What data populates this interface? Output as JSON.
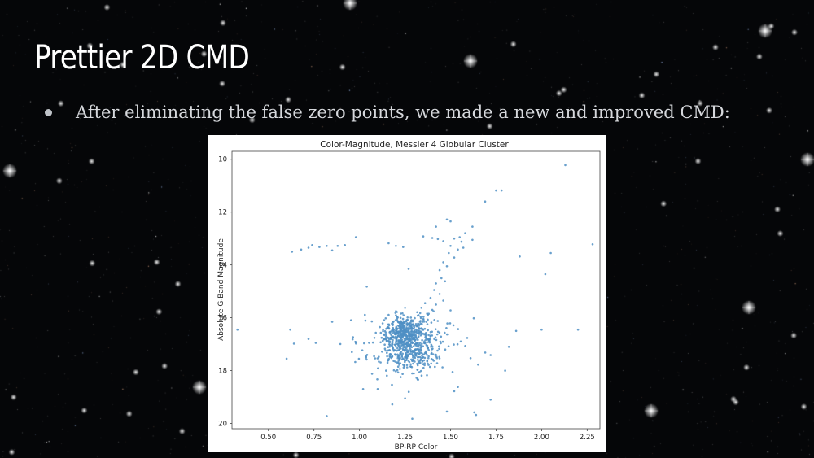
{
  "slide": {
    "title": "Prettier 2D CMD",
    "bullet": "After eliminating the false zero points, we made a new and improved CMD:"
  },
  "colors": {
    "background": "#050608",
    "title": "#ffffff",
    "bullet_text": "#d6d8dc",
    "point": "#4f8fc4"
  },
  "chart_data": {
    "type": "scatter",
    "title": "Color-Magnitude, Messier 4 Globular Cluster",
    "xlabel": "BP-RP Color",
    "ylabel": "Absolute G-Band Magnitude",
    "xlim": [
      0.3,
      2.32
    ],
    "ylim": [
      20.2,
      9.7
    ],
    "y_inverted": true,
    "x_ticks": [
      "0.50",
      "0.75",
      "1.00",
      "1.25",
      "1.50",
      "1.75",
      "2.00",
      "2.25"
    ],
    "y_ticks": [
      "10",
      "12",
      "14",
      "16",
      "18",
      "20"
    ],
    "grid": false,
    "legend": "none",
    "series": [
      {
        "points": [
          [
            2.13,
            10.22
          ],
          [
            1.75,
            11.18
          ],
          [
            1.78,
            11.18
          ],
          [
            1.69,
            11.6
          ],
          [
            1.48,
            12.28
          ],
          [
            1.5,
            12.35
          ],
          [
            1.42,
            12.55
          ],
          [
            1.62,
            12.55
          ],
          [
            1.58,
            12.8
          ],
          [
            1.55,
            12.95
          ],
          [
            1.35,
            12.92
          ],
          [
            1.4,
            12.98
          ],
          [
            1.46,
            13.1
          ],
          [
            1.52,
            13.0
          ],
          [
            1.56,
            13.12
          ],
          [
            1.5,
            13.28
          ],
          [
            1.54,
            13.42
          ],
          [
            1.49,
            13.55
          ],
          [
            1.52,
            13.72
          ],
          [
            1.46,
            13.9
          ],
          [
            1.48,
            14.05
          ],
          [
            1.44,
            14.2
          ],
          [
            1.45,
            14.5
          ],
          [
            1.42,
            14.7
          ],
          [
            1.47,
            14.62
          ],
          [
            1.41,
            14.95
          ],
          [
            1.44,
            15.1
          ],
          [
            1.39,
            15.25
          ],
          [
            1.46,
            15.35
          ],
          [
            1.36,
            15.45
          ],
          [
            1.42,
            15.5
          ],
          [
            1.34,
            15.62
          ],
          [
            1.4,
            15.7
          ],
          [
            1.5,
            15.72
          ],
          [
            1.38,
            15.85
          ],
          [
            1.32,
            15.92
          ],
          [
            1.27,
            14.15
          ],
          [
            1.04,
            14.82
          ],
          [
            1.25,
            15.62
          ],
          [
            1.2,
            15.75
          ],
          [
            0.63,
            13.5
          ],
          [
            0.68,
            13.42
          ],
          [
            0.72,
            13.35
          ],
          [
            0.78,
            13.32
          ],
          [
            0.82,
            13.28
          ],
          [
            0.88,
            13.28
          ],
          [
            0.92,
            13.25
          ],
          [
            0.98,
            12.95
          ],
          [
            0.74,
            13.25
          ],
          [
            0.85,
            13.45
          ],
          [
            1.16,
            13.18
          ],
          [
            1.2,
            13.28
          ],
          [
            1.24,
            13.32
          ],
          [
            1.43,
            13.02
          ],
          [
            1.62,
            13.05
          ],
          [
            1.57,
            13.35
          ],
          [
            2.05,
            13.55
          ],
          [
            2.28,
            13.22
          ],
          [
            2.02,
            14.35
          ],
          [
            1.88,
            13.68
          ],
          [
            0.33,
            16.45
          ],
          [
            0.62,
            16.45
          ],
          [
            0.64,
            16.98
          ],
          [
            0.72,
            16.8
          ],
          [
            0.76,
            16.95
          ],
          [
            0.6,
            17.55
          ],
          [
            0.85,
            16.15
          ],
          [
            1.82,
            17.1
          ],
          [
            1.86,
            16.5
          ],
          [
            2.0,
            16.45
          ],
          [
            2.2,
            16.45
          ],
          [
            1.52,
            18.78
          ],
          [
            1.48,
            19.55
          ],
          [
            1.64,
            19.68
          ],
          [
            1.63,
            19.58
          ],
          [
            1.29,
            19.82
          ],
          [
            0.82,
            19.72
          ],
          [
            1.18,
            19.28
          ],
          [
            1.1,
            18.7
          ],
          [
            1.25,
            19.05
          ],
          [
            1.72,
            19.1
          ],
          [
            1.8,
            18.0
          ],
          [
            1.54,
            18.62
          ],
          [
            1.02,
            18.7
          ]
        ],
        "cluster": {
          "n": 560,
          "seed": 17,
          "center_x": 1.27,
          "center_y": 16.95,
          "spread_x": 0.11,
          "spread_y": 0.78,
          "dense_n": 180,
          "dense_center_x": 1.24,
          "dense_center_y": 16.55,
          "dense_spread_x": 0.06,
          "dense_spread_y": 0.3,
          "wide_n": 120,
          "wide_spread_x": 0.26,
          "wide_spread_y": 0.9,
          "range_x": [
            0.88,
            1.82
          ],
          "range_y": [
            15.75,
            19.3
          ]
        }
      }
    ]
  }
}
